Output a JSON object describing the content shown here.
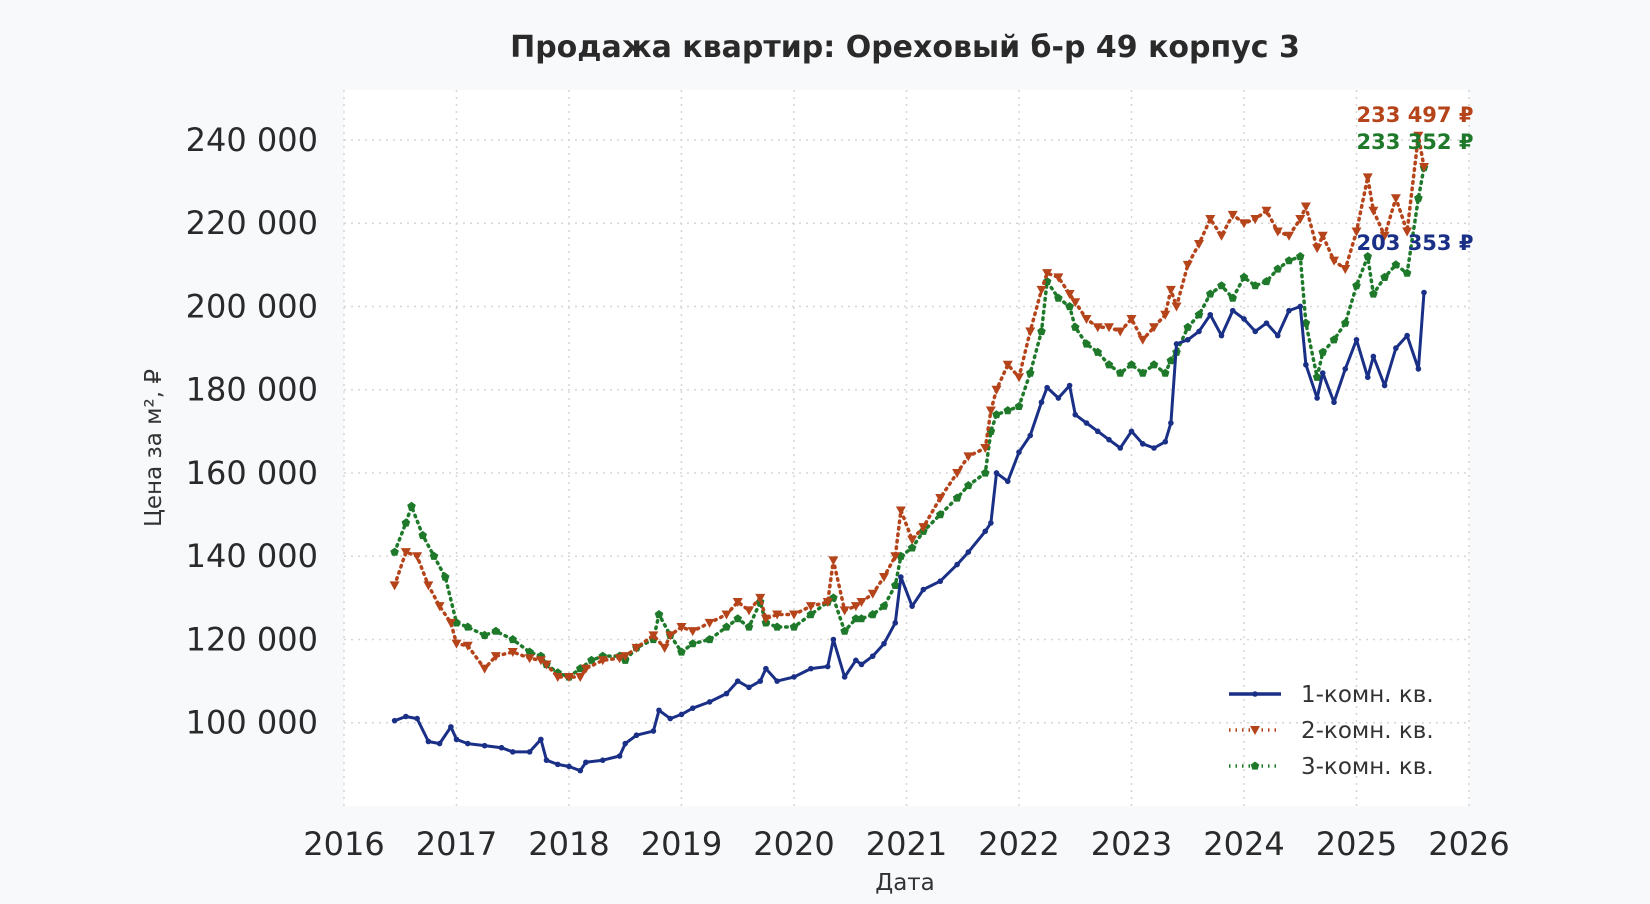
{
  "chart_data": {
    "type": "line",
    "title": "Продажа квартир: Ореховый б-р 49 корпус 3",
    "xlabel": "Дата",
    "ylabel": "Цена за м², ₽",
    "xlim": [
      2016,
      2026
    ],
    "ylim": [
      80000,
      252000
    ],
    "x_ticks": [
      "2016",
      "2017",
      "2018",
      "2019",
      "2020",
      "2021",
      "2022",
      "2023",
      "2024",
      "2025",
      "2026"
    ],
    "y_ticks": [
      "100 000",
      "120 000",
      "140 000",
      "160 000",
      "180 000",
      "200 000",
      "220 000",
      "240 000"
    ],
    "grid": true,
    "legend_position": "bottom-right",
    "series": [
      {
        "name": "1-комн. кв.",
        "color": "#1a2f86",
        "style": "solid",
        "marker": "star",
        "end_label": "203 353 ₽",
        "x": [
          2016.45,
          2016.55,
          2016.65,
          2016.75,
          2016.85,
          2016.95,
          2017.0,
          2017.1,
          2017.25,
          2017.4,
          2017.5,
          2017.65,
          2017.75,
          2017.8,
          2017.9,
          2018.0,
          2018.1,
          2018.15,
          2018.3,
          2018.45,
          2018.5,
          2018.6,
          2018.75,
          2018.8,
          2018.9,
          2019.0,
          2019.1,
          2019.25,
          2019.4,
          2019.5,
          2019.6,
          2019.7,
          2019.75,
          2019.85,
          2020.0,
          2020.15,
          2020.3,
          2020.35,
          2020.45,
          2020.55,
          2020.6,
          2020.7,
          2020.8,
          2020.9,
          2020.95,
          2021.05,
          2021.15,
          2021.3,
          2021.45,
          2021.55,
          2021.7,
          2021.75,
          2021.8,
          2021.9,
          2022.0,
          2022.1,
          2022.2,
          2022.25,
          2022.35,
          2022.45,
          2022.5,
          2022.6,
          2022.7,
          2022.8,
          2022.9,
          2023.0,
          2023.1,
          2023.2,
          2023.3,
          2023.35,
          2023.4,
          2023.5,
          2023.6,
          2023.7,
          2023.8,
          2023.9,
          2024.0,
          2024.1,
          2024.2,
          2024.3,
          2024.4,
          2024.5,
          2024.55,
          2024.65,
          2024.7,
          2024.8,
          2024.9,
          2025.0,
          2025.1,
          2025.15,
          2025.25,
          2025.35,
          2025.45,
          2025.55,
          2025.6
        ],
        "y": [
          100500,
          101500,
          101000,
          95500,
          95000,
          99000,
          96000,
          95000,
          94500,
          94000,
          93000,
          93000,
          96000,
          91000,
          90000,
          89500,
          88500,
          90500,
          91000,
          92000,
          95000,
          97000,
          98000,
          103000,
          101000,
          102000,
          103500,
          105000,
          107000,
          110000,
          108500,
          110000,
          113000,
          110000,
          111000,
          113000,
          113500,
          120000,
          111000,
          115000,
          114000,
          116000,
          119000,
          124000,
          135000,
          128000,
          132000,
          134000,
          138000,
          141000,
          146000,
          148000,
          160000,
          158000,
          165000,
          169000,
          177000,
          180500,
          178000,
          181000,
          174000,
          172000,
          170000,
          168000,
          166000,
          170000,
          167000,
          166000,
          167500,
          172000,
          191000,
          192000,
          194000,
          198000,
          193000,
          199000,
          197000,
          194000,
          196000,
          193000,
          199000,
          200000,
          186000,
          178000,
          184000,
          177000,
          185000,
          192000,
          183000,
          188000,
          181000,
          190000,
          193000,
          185000,
          203353
        ]
      },
      {
        "name": "2-комн. кв.",
        "color": "#b5441a",
        "style": "dotted",
        "marker": "triangle-down",
        "end_label": "233 497 ₽",
        "x": [
          2016.45,
          2016.55,
          2016.65,
          2016.75,
          2016.85,
          2016.95,
          2017.0,
          2017.1,
          2017.25,
          2017.35,
          2017.5,
          2017.65,
          2017.75,
          2017.8,
          2017.9,
          2018.0,
          2018.1,
          2018.15,
          2018.3,
          2018.45,
          2018.5,
          2018.6,
          2018.75,
          2018.85,
          2018.9,
          2019.0,
          2019.1,
          2019.25,
          2019.4,
          2019.5,
          2019.6,
          2019.7,
          2019.75,
          2019.85,
          2020.0,
          2020.15,
          2020.3,
          2020.35,
          2020.45,
          2020.55,
          2020.6,
          2020.7,
          2020.8,
          2020.9,
          2020.95,
          2021.05,
          2021.15,
          2021.3,
          2021.45,
          2021.55,
          2021.7,
          2021.75,
          2021.8,
          2021.9,
          2022.0,
          2022.1,
          2022.2,
          2022.25,
          2022.35,
          2022.45,
          2022.5,
          2022.6,
          2022.7,
          2022.8,
          2022.9,
          2023.0,
          2023.1,
          2023.2,
          2023.3,
          2023.35,
          2023.4,
          2023.5,
          2023.6,
          2023.7,
          2023.8,
          2023.9,
          2024.0,
          2024.1,
          2024.2,
          2024.3,
          2024.4,
          2024.5,
          2024.55,
          2024.65,
          2024.7,
          2024.8,
          2024.9,
          2025.0,
          2025.1,
          2025.15,
          2025.25,
          2025.35,
          2025.45,
          2025.55,
          2025.6
        ],
        "y": [
          133000,
          141000,
          140000,
          133000,
          128000,
          124000,
          119000,
          118500,
          113000,
          116000,
          117000,
          115500,
          115000,
          114000,
          111000,
          111000,
          111000,
          113000,
          115000,
          115500,
          116000,
          118000,
          121000,
          118000,
          121000,
          123000,
          122000,
          124000,
          126000,
          129000,
          127000,
          130000,
          125000,
          126000,
          126000,
          128000,
          129000,
          139000,
          127000,
          128000,
          129000,
          131000,
          135000,
          140000,
          151000,
          144000,
          147000,
          154000,
          160000,
          164000,
          166000,
          175000,
          180000,
          186000,
          183000,
          194000,
          204000,
          208000,
          207000,
          203000,
          201000,
          197000,
          195000,
          195000,
          194000,
          197000,
          192000,
          195000,
          198000,
          204000,
          200000,
          210000,
          215000,
          221000,
          217000,
          222000,
          220000,
          221000,
          223000,
          218000,
          217000,
          221000,
          224000,
          214000,
          217000,
          211000,
          209000,
          218000,
          231000,
          223000,
          217000,
          226000,
          218000,
          241000,
          233497
        ]
      },
      {
        "name": "3-комн. кв.",
        "color": "#1e7a2a",
        "style": "dotted",
        "marker": "pentagon",
        "end_label": "233 352 ₽",
        "x": [
          2016.45,
          2016.55,
          2016.6,
          2016.7,
          2016.8,
          2016.9,
          2017.0,
          2017.1,
          2017.25,
          2017.35,
          2017.5,
          2017.65,
          2017.75,
          2017.8,
          2017.9,
          2018.0,
          2018.1,
          2018.2,
          2018.3,
          2018.45,
          2018.5,
          2018.6,
          2018.75,
          2018.8,
          2018.9,
          2019.0,
          2019.1,
          2019.25,
          2019.4,
          2019.5,
          2019.6,
          2019.7,
          2019.75,
          2019.85,
          2020.0,
          2020.15,
          2020.3,
          2020.35,
          2020.45,
          2020.55,
          2020.6,
          2020.7,
          2020.8,
          2020.9,
          2020.95,
          2021.05,
          2021.15,
          2021.3,
          2021.45,
          2021.55,
          2021.7,
          2021.75,
          2021.8,
          2021.9,
          2022.0,
          2022.1,
          2022.2,
          2022.25,
          2022.35,
          2022.45,
          2022.5,
          2022.6,
          2022.7,
          2022.8,
          2022.9,
          2023.0,
          2023.1,
          2023.2,
          2023.3,
          2023.35,
          2023.4,
          2023.5,
          2023.6,
          2023.7,
          2023.8,
          2023.9,
          2024.0,
          2024.1,
          2024.2,
          2024.3,
          2024.4,
          2024.5,
          2024.55,
          2024.65,
          2024.7,
          2024.8,
          2024.9,
          2025.0,
          2025.1,
          2025.15,
          2025.25,
          2025.35,
          2025.45,
          2025.55,
          2025.6
        ],
        "y": [
          141000,
          148000,
          152000,
          145000,
          140000,
          135000,
          124000,
          123000,
          121000,
          122000,
          120000,
          117000,
          116000,
          114000,
          112000,
          111000,
          113000,
          115000,
          116000,
          116000,
          115000,
          118000,
          120000,
          126000,
          121000,
          117000,
          119000,
          120000,
          123000,
          125000,
          123000,
          129000,
          124000,
          123000,
          123000,
          126000,
          129000,
          130000,
          122000,
          125000,
          125000,
          126000,
          128000,
          133000,
          140000,
          142000,
          146000,
          150000,
          154000,
          157000,
          160000,
          170000,
          174000,
          175000,
          176000,
          184000,
          194000,
          206000,
          202000,
          200000,
          195000,
          191000,
          189000,
          186000,
          184000,
          186000,
          184000,
          186000,
          184000,
          187000,
          189000,
          195000,
          198000,
          203000,
          205000,
          202000,
          207000,
          205000,
          206000,
          209000,
          211000,
          212000,
          196000,
          183000,
          189000,
          192000,
          196000,
          205000,
          212000,
          203000,
          207000,
          210000,
          208000,
          226000,
          233352
        ]
      }
    ]
  }
}
